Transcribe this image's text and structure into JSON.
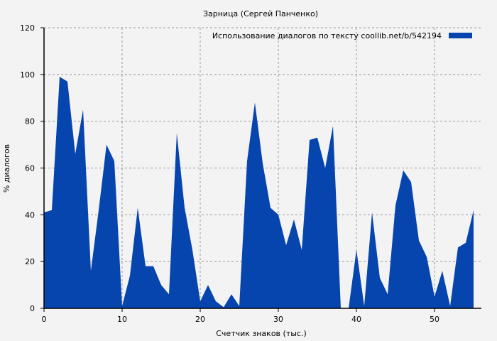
{
  "chart_data": {
    "type": "area",
    "title": "Зарница (Сергей Панченко)",
    "xlabel": "Счетчик знаков (тыс.)",
    "ylabel": "% диалогов",
    "xlim": [
      0,
      56
    ],
    "ylim": [
      0,
      120
    ],
    "xticks": [
      0,
      10,
      20,
      30,
      40,
      50
    ],
    "yticks": [
      0,
      20,
      40,
      60,
      80,
      100,
      120
    ],
    "grid": true,
    "legend_placement": "top-right",
    "color": "#0645ad",
    "series": [
      {
        "name": "Использование диалогов по тексту  coollib.net/b/542194",
        "x": [
          0,
          1,
          2,
          3,
          4,
          5,
          6,
          7,
          8,
          9,
          10,
          11,
          12,
          13,
          14,
          15,
          16,
          17,
          18,
          19,
          20,
          21,
          22,
          23,
          24,
          25,
          26,
          27,
          28,
          29,
          30,
          31,
          32,
          33,
          34,
          35,
          36,
          37,
          38,
          39,
          40,
          41,
          42,
          43,
          44,
          45,
          46,
          47,
          48,
          49,
          50,
          51,
          52,
          53,
          54,
          55
        ],
        "values": [
          41,
          42,
          99,
          97,
          66,
          85,
          16,
          42,
          70,
          63,
          1,
          14,
          43,
          18,
          18,
          10,
          6,
          75,
          43,
          25,
          3,
          10,
          3,
          0.5,
          6,
          1,
          63,
          88,
          62,
          43,
          40,
          27,
          38,
          25,
          72,
          73,
          60,
          78,
          0,
          0,
          25,
          1,
          41,
          13,
          6,
          44,
          59,
          54,
          29,
          22,
          5,
          16,
          1,
          26,
          28,
          42
        ]
      }
    ]
  }
}
